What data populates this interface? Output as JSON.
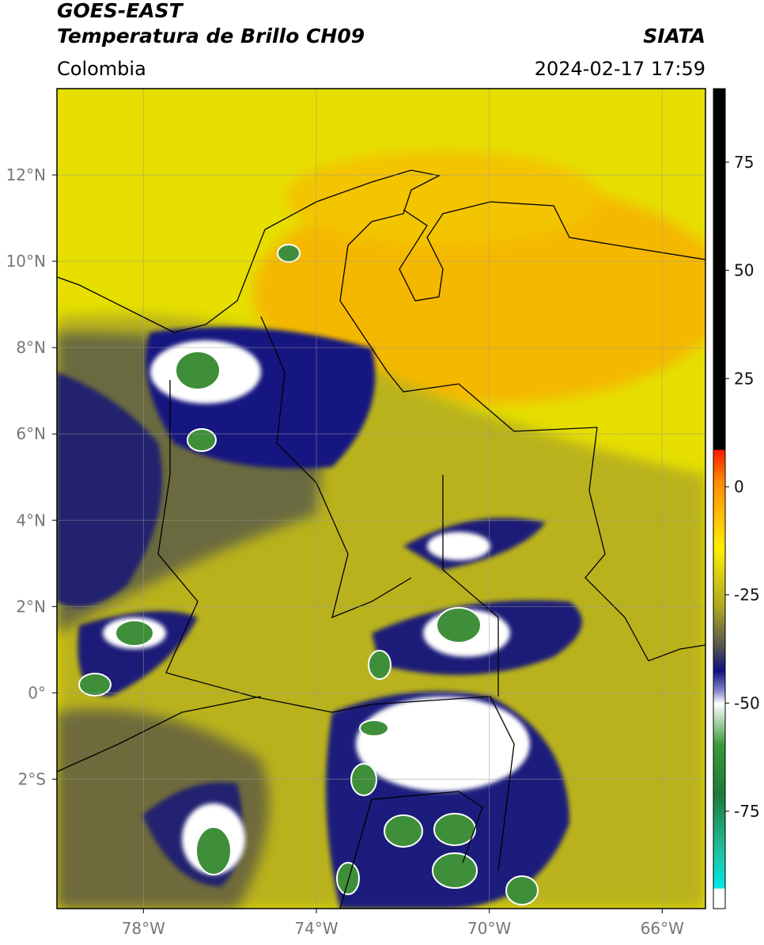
{
  "header": {
    "title": "GOES-EAST",
    "subtitle": "Temperatura de Brillo CH09",
    "region": "Colombia",
    "source": "SIATA",
    "datetime": "2024-02-17 17:59"
  },
  "map": {
    "xlim": [
      -80,
      -65
    ],
    "ylim": [
      -5,
      14
    ],
    "grid": true,
    "xticks": [
      {
        "value": -78,
        "label": "78°W"
      },
      {
        "value": -74,
        "label": "74°W"
      },
      {
        "value": -70,
        "label": "70°W"
      },
      {
        "value": -66,
        "label": "66°W"
      }
    ],
    "yticks": [
      {
        "value": 12,
        "label": "12°N"
      },
      {
        "value": 10,
        "label": "10°N"
      },
      {
        "value": 8,
        "label": "8°N"
      },
      {
        "value": 6,
        "label": "6°N"
      },
      {
        "value": 4,
        "label": "4°N"
      },
      {
        "value": 2,
        "label": "2°N"
      },
      {
        "value": 0,
        "label": "0°"
      },
      {
        "value": -2,
        "label": "2°S"
      }
    ]
  },
  "colorbar": {
    "lim": [
      -97.5,
      92
    ],
    "ticks": [
      -75,
      -50,
      -25,
      0,
      25,
      50,
      75
    ]
  }
}
